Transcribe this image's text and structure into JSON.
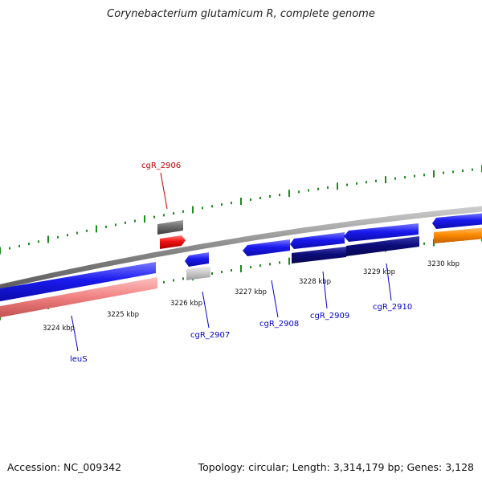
{
  "title": "Corynebacterium glutamicum R, complete genome",
  "footer": {
    "accession": "Accession: NC_009342",
    "topology": "Topology: circular; Length: 3,314,179 bp; Genes: 3,128"
  },
  "scale_labels": [
    "3224 kbp",
    "3225 kbp",
    "3226 kbp",
    "3227 kbp",
    "3228 kbp",
    "3229 kbp",
    "3230 kbp"
  ],
  "gene_labels": {
    "cgR_2906": "cgR_2906",
    "cgR_2907": "cgR_2907",
    "cgR_2908": "cgR_2908",
    "cgR_2909": "cgR_2909",
    "cgR_2910": "cgR_2910",
    "leuS": "leuS"
  },
  "colors": {
    "backbone": "#8a8a8a",
    "gene_blue": "#1a1aee",
    "gene_navy": "#0c0c7a",
    "gene_red": "#ee1111",
    "gene_pink": "#f08080",
    "gene_grey": "#6e6e6e",
    "gene_lightgrey": "#c8c8c8",
    "gene_orange": "#ff8c00",
    "tick_green": "#1f8a1f",
    "label_red": "#cc0000",
    "label_blue": "#0000cc"
  }
}
